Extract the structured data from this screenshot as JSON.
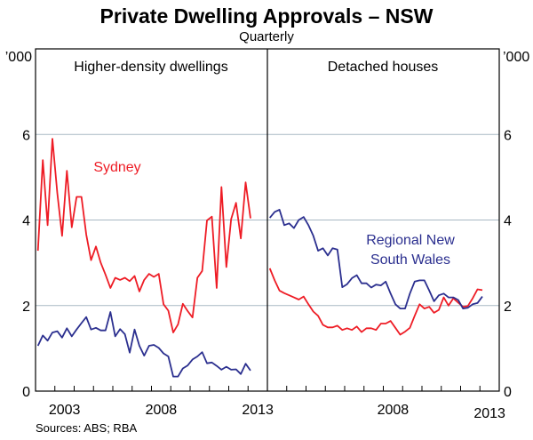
{
  "chart_data": {
    "type": "line",
    "title": "Private Dwelling Approvals – NSW",
    "subtitle": "Quarterly",
    "y_unit_left": "’000",
    "y_unit_right": "’000",
    "ylim": [
      0,
      8
    ],
    "yticks": [
      0,
      2,
      4,
      6
    ],
    "grid": true,
    "x_range": [
      2002,
      2014
    ],
    "x_start": "2002 Q1",
    "frequency": "quarterly",
    "source": "Sources: ABS; RBA",
    "colors": {
      "sydney": "#ee1c25",
      "regional": "#2b2f8f"
    },
    "panels": [
      {
        "title": "Higher-density dwellings",
        "xticklabels": [
          "2003",
          "2008",
          "2013"
        ],
        "annotations": [
          {
            "text": "Sydney",
            "series": "sydney"
          }
        ],
        "series": [
          {
            "name": "Sydney",
            "key": "sydney",
            "values": [
              3.28,
              5.4,
              3.88,
              5.9,
              4.63,
              3.63,
              5.15,
              3.83,
              4.54,
              4.54,
              3.66,
              3.06,
              3.38,
              3.0,
              2.72,
              2.41,
              2.65,
              2.6,
              2.65,
              2.57,
              2.69,
              2.33,
              2.6,
              2.74,
              2.67,
              2.74,
              2.03,
              1.88,
              1.37,
              1.56,
              2.04,
              1.87,
              1.72,
              2.65,
              2.81,
              3.99,
              4.08,
              2.41,
              4.77,
              2.9,
              4.02,
              4.4,
              3.57,
              4.88,
              4.04
            ]
          },
          {
            "name": "Regional New South Wales",
            "key": "regional",
            "values": [
              1.06,
              1.3,
              1.18,
              1.37,
              1.4,
              1.25,
              1.47,
              1.28,
              1.44,
              1.59,
              1.73,
              1.44,
              1.48,
              1.42,
              1.42,
              1.85,
              1.28,
              1.45,
              1.33,
              0.9,
              1.44,
              1.06,
              0.83,
              1.06,
              1.08,
              1.01,
              0.88,
              0.81,
              0.34,
              0.34,
              0.53,
              0.6,
              0.74,
              0.81,
              0.91,
              0.65,
              0.67,
              0.59,
              0.5,
              0.57,
              0.5,
              0.51,
              0.4,
              0.64,
              0.48
            ]
          }
        ]
      },
      {
        "title": "Detached houses",
        "xticklabels": [
          "2008",
          "2013"
        ],
        "annotations": [
          {
            "text": "Regional New",
            "series": "regional"
          },
          {
            "text": "South Wales",
            "series": "regional"
          }
        ],
        "series": [
          {
            "name": "Sydney",
            "key": "sydney",
            "values": [
              2.87,
              2.59,
              2.35,
              2.29,
              2.24,
              2.19,
              2.14,
              2.21,
              2.03,
              1.86,
              1.76,
              1.55,
              1.49,
              1.49,
              1.53,
              1.43,
              1.47,
              1.43,
              1.51,
              1.38,
              1.47,
              1.47,
              1.43,
              1.58,
              1.58,
              1.64,
              1.48,
              1.32,
              1.39,
              1.48,
              1.76,
              2.03,
              1.93,
              1.97,
              1.83,
              1.9,
              2.19,
              2.0,
              2.17,
              2.07,
              1.97,
              1.99,
              2.17,
              2.38,
              2.36
            ]
          },
          {
            "name": "Regional New South Wales",
            "key": "regional",
            "values": [
              4.05,
              4.19,
              4.24,
              3.88,
              3.92,
              3.81,
              4.0,
              4.07,
              3.88,
              3.63,
              3.28,
              3.34,
              3.17,
              3.34,
              3.31,
              2.43,
              2.5,
              2.64,
              2.71,
              2.52,
              2.52,
              2.42,
              2.49,
              2.47,
              2.56,
              2.28,
              2.03,
              1.93,
              1.93,
              2.28,
              2.56,
              2.59,
              2.59,
              2.35,
              2.1,
              2.24,
              2.28,
              2.19,
              2.19,
              2.13,
              1.93,
              1.95,
              2.03,
              2.06,
              2.21
            ]
          }
        ]
      }
    ]
  }
}
